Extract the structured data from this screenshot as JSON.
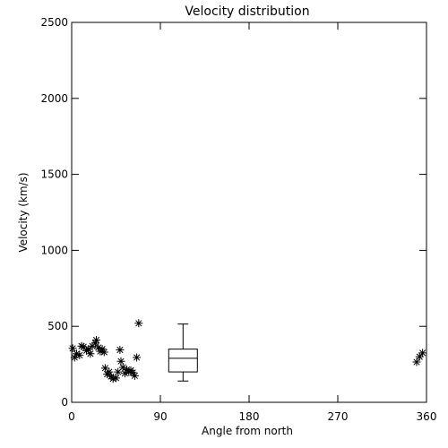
{
  "chart_data": {
    "type": "scatter",
    "title": "Velocity distribution",
    "xlabel": "Angle from north",
    "ylabel": "Velocity (km/s)",
    "xlim": [
      0,
      360
    ],
    "ylim": [
      0,
      2500
    ],
    "xticks": [
      0,
      90,
      180,
      270,
      360
    ],
    "yticks": [
      0,
      500,
      1000,
      1500,
      2000,
      2500
    ],
    "x_tick_labels": [
      "0",
      "90",
      "180",
      "270",
      "360"
    ],
    "y_tick_labels": [
      "0",
      "500",
      "1000",
      "1500",
      "2000",
      "2500"
    ],
    "grid": false,
    "marker": "asterisk",
    "points": [
      {
        "x": 1,
        "y": 355
      },
      {
        "x": 3,
        "y": 295
      },
      {
        "x": 5,
        "y": 320
      },
      {
        "x": 8,
        "y": 310
      },
      {
        "x": 10,
        "y": 370
      },
      {
        "x": 12,
        "y": 365
      },
      {
        "x": 15,
        "y": 340
      },
      {
        "x": 17,
        "y": 350
      },
      {
        "x": 19,
        "y": 320
      },
      {
        "x": 21,
        "y": 370
      },
      {
        "x": 24,
        "y": 390
      },
      {
        "x": 25,
        "y": 410
      },
      {
        "x": 27,
        "y": 360
      },
      {
        "x": 29,
        "y": 335
      },
      {
        "x": 31,
        "y": 350
      },
      {
        "x": 33,
        "y": 330
      },
      {
        "x": 34,
        "y": 225
      },
      {
        "x": 36,
        "y": 185
      },
      {
        "x": 38,
        "y": 200
      },
      {
        "x": 40,
        "y": 170
      },
      {
        "x": 42,
        "y": 155
      },
      {
        "x": 45,
        "y": 160
      },
      {
        "x": 47,
        "y": 200
      },
      {
        "x": 49,
        "y": 345
      },
      {
        "x": 50,
        "y": 270
      },
      {
        "x": 52,
        "y": 230
      },
      {
        "x": 54,
        "y": 190
      },
      {
        "x": 56,
        "y": 215
      },
      {
        "x": 58,
        "y": 200
      },
      {
        "x": 60,
        "y": 210
      },
      {
        "x": 62,
        "y": 195
      },
      {
        "x": 64,
        "y": 175
      },
      {
        "x": 66,
        "y": 295
      },
      {
        "x": 68,
        "y": 520
      },
      {
        "x": 350,
        "y": 265
      },
      {
        "x": 353,
        "y": 300
      },
      {
        "x": 356,
        "y": 325
      }
    ],
    "boxplot": {
      "x": 113,
      "min": 140,
      "q1": 200,
      "median": 290,
      "q3": 350,
      "max": 515
    }
  }
}
